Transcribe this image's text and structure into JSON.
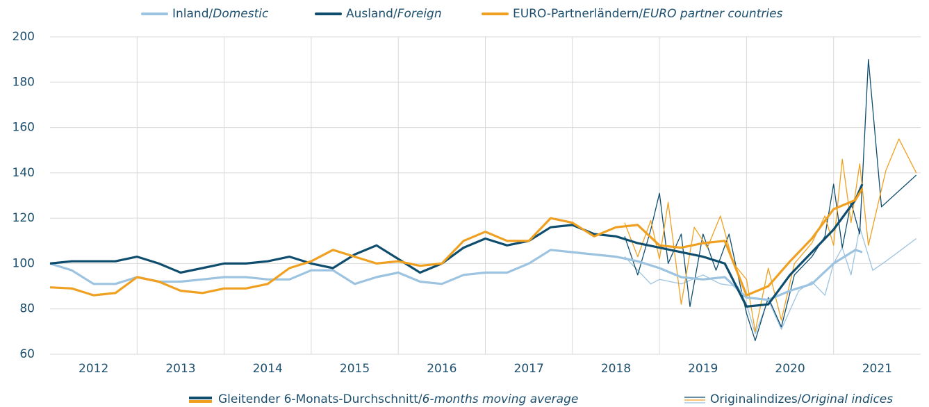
{
  "chart_data": {
    "type": "line",
    "xlim": [
      2012,
      2022
    ],
    "xticks": [
      {
        "value": 2012.5,
        "label": "2012"
      },
      {
        "value": 2013.5,
        "label": "2013"
      },
      {
        "value": 2014.5,
        "label": "2014"
      },
      {
        "value": 2015.5,
        "label": "2015"
      },
      {
        "value": 2016.5,
        "label": "2016"
      },
      {
        "value": 2017.5,
        "label": "2017"
      },
      {
        "value": 2018.5,
        "label": "2018"
      },
      {
        "value": 2019.5,
        "label": "2019"
      },
      {
        "value": 2020.5,
        "label": "2020"
      },
      {
        "value": 2021.5,
        "label": "2021"
      }
    ],
    "xgrid": [
      2013,
      2014,
      2015,
      2016,
      2017,
      2018,
      2019,
      2020,
      2021
    ],
    "ylim": [
      60,
      200
    ],
    "yticks": [
      60,
      80,
      100,
      120,
      140,
      160,
      180,
      200
    ],
    "grid": true,
    "legend": "top",
    "line_styles": [
      "Gleitender 6-Monats-Durchschnitt/6-months moving average",
      "Originalindizes/Original indices"
    ],
    "series": [
      {
        "name": "Inland/Domestic",
        "color": "#9cc3e0",
        "x": [
          2012.0,
          2012.25,
          2012.5,
          2012.75,
          2013.0,
          2013.25,
          2013.5,
          2013.75,
          2014.0,
          2014.25,
          2014.5,
          2014.75,
          2015.0,
          2015.25,
          2015.5,
          2015.75,
          2016.0,
          2016.25,
          2016.5,
          2016.75,
          2017.0,
          2017.25,
          2017.5,
          2017.75,
          2018.0,
          2018.25,
          2018.5,
          2018.75,
          2019.0,
          2019.25,
          2019.5,
          2019.75,
          2020.0,
          2020.25,
          2020.5,
          2020.75,
          2021.0,
          2021.25,
          2021.33
        ],
        "values": [
          100,
          97,
          91,
          91,
          94,
          92,
          92,
          93,
          94,
          94,
          93,
          93,
          97,
          97,
          91,
          94,
          96,
          92,
          91,
          95,
          96,
          96,
          100,
          106,
          105,
          104,
          103,
          101,
          98,
          94,
          93,
          94,
          85,
          84,
          88,
          91,
          100,
          106,
          105
        ],
        "original": {
          "x": [
            2018.6,
            2018.75,
            2018.9,
            2019.0,
            2019.25,
            2019.5,
            2019.7,
            2019.9,
            2020.0,
            2020.1,
            2020.25,
            2020.4,
            2020.6,
            2020.75,
            2020.9,
            2021.0,
            2021.1,
            2021.2,
            2021.3,
            2021.45,
            2021.6,
            2021.95
          ],
          "values": [
            103,
            97,
            91,
            93,
            91,
            95,
            91,
            90,
            82,
            69,
            84,
            71,
            88,
            92,
            86,
            100,
            107,
            95,
            116,
            97,
            101,
            111
          ]
        }
      },
      {
        "name": "Ausland/Foreign",
        "color": "#0e4d6e",
        "x": [
          2012.0,
          2012.25,
          2012.5,
          2012.75,
          2013.0,
          2013.25,
          2013.5,
          2013.75,
          2014.0,
          2014.25,
          2014.5,
          2014.75,
          2015.0,
          2015.25,
          2015.5,
          2015.75,
          2016.0,
          2016.25,
          2016.5,
          2016.75,
          2017.0,
          2017.25,
          2017.5,
          2017.75,
          2018.0,
          2018.25,
          2018.5,
          2018.75,
          2019.0,
          2019.25,
          2019.5,
          2019.75,
          2020.0,
          2020.25,
          2020.5,
          2020.75,
          2021.0,
          2021.25,
          2021.33
        ],
        "values": [
          100,
          101,
          101,
          101,
          103,
          100,
          96,
          98,
          100,
          100,
          101,
          103,
          100,
          98,
          104,
          108,
          102,
          96,
          100,
          107,
          111,
          108,
          110,
          116,
          117,
          113,
          112,
          109,
          107,
          105,
          103,
          100,
          81,
          82,
          95,
          105,
          115,
          128,
          135
        ],
        "original": {
          "x": [
            2018.6,
            2018.75,
            2018.9,
            2019.0,
            2019.1,
            2019.25,
            2019.35,
            2019.5,
            2019.65,
            2019.8,
            2019.9,
            2020.0,
            2020.1,
            2020.25,
            2020.4,
            2020.55,
            2020.75,
            2020.9,
            2021.0,
            2021.1,
            2021.2,
            2021.3,
            2021.4,
            2021.55,
            2021.95
          ],
          "values": [
            112,
            95,
            115,
            131,
            100,
            113,
            81,
            113,
            97,
            113,
            95,
            78,
            66,
            85,
            72,
            95,
            103,
            112,
            135,
            107,
            127,
            113,
            190,
            125,
            139
          ]
        }
      },
      {
        "name": "EURO-Partnerländern/EURO partner countries",
        "color": "#f0a020",
        "x": [
          2012.0,
          2012.25,
          2012.5,
          2012.75,
          2013.0,
          2013.25,
          2013.5,
          2013.75,
          2014.0,
          2014.25,
          2014.5,
          2014.75,
          2015.0,
          2015.25,
          2015.5,
          2015.75,
          2016.0,
          2016.25,
          2016.5,
          2016.75,
          2017.0,
          2017.25,
          2017.5,
          2017.75,
          2018.0,
          2018.25,
          2018.5,
          2018.75,
          2019.0,
          2019.25,
          2019.5,
          2019.75,
          2020.0,
          2020.25,
          2020.5,
          2020.75,
          2021.0,
          2021.25,
          2021.33
        ],
        "values": [
          89.5,
          89,
          86,
          87,
          94,
          92,
          88,
          87,
          89,
          89,
          91,
          98,
          101,
          106,
          103,
          100,
          101,
          99,
          100,
          110,
          114,
          110,
          110,
          120,
          118,
          112,
          116,
          117,
          108,
          107,
          109,
          110,
          86,
          90,
          101,
          111,
          124,
          128,
          133
        ],
        "original": {
          "x": [
            2018.6,
            2018.75,
            2018.9,
            2019.0,
            2019.1,
            2019.25,
            2019.4,
            2019.55,
            2019.7,
            2019.85,
            2020.0,
            2020.1,
            2020.25,
            2020.4,
            2020.55,
            2020.75,
            2020.9,
            2021.0,
            2021.1,
            2021.2,
            2021.3,
            2021.4,
            2021.6,
            2021.75,
            2021.95
          ],
          "values": [
            118,
            103,
            119,
            102,
            127,
            82,
            116,
            107,
            121,
            100,
            93,
            70,
            98,
            75,
            100,
            109,
            121,
            108,
            146,
            118,
            144,
            108,
            141,
            155,
            140
          ]
        }
      }
    ]
  }
}
